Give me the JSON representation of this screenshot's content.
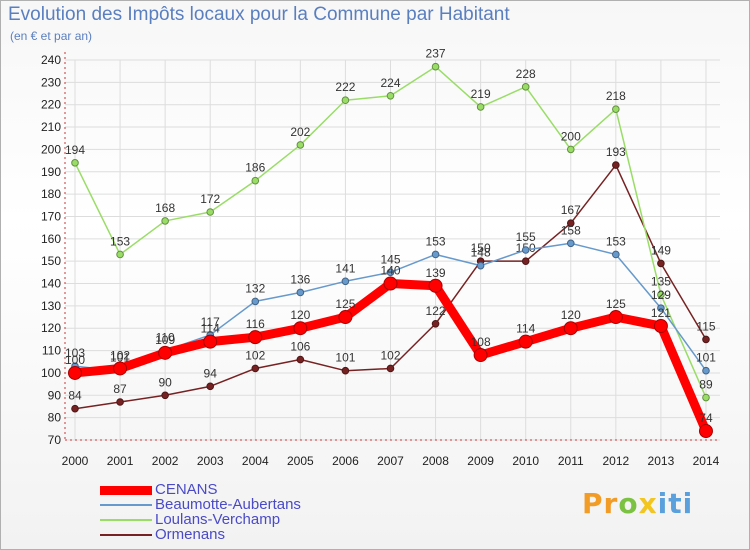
{
  "chart_data": {
    "type": "line",
    "title": "Evolution des Impôts locaux pour la Commune par Habitant",
    "subtitle": "(en € et par an)",
    "x": [
      "2000",
      "2001",
      "2002",
      "2003",
      "2004",
      "2005",
      "2006",
      "2007",
      "2008",
      "2009",
      "2010",
      "2011",
      "2012",
      "2013",
      "2014"
    ],
    "ylim": [
      70,
      240
    ],
    "yticks": [
      70,
      80,
      90,
      100,
      110,
      120,
      130,
      140,
      150,
      160,
      170,
      180,
      190,
      200,
      210,
      220,
      230,
      240
    ],
    "grid": true,
    "legend_position": "bottom-left",
    "series": [
      {
        "name": "CENANS",
        "color": "#ff0000",
        "values": [
          100,
          102,
          109,
          114,
          116,
          120,
          125,
          140,
          139,
          108,
          114,
          120,
          125,
          121,
          74
        ]
      },
      {
        "name": "Beaumotte-Aubertans",
        "color": "#6699cc",
        "values": [
          103,
          101,
          110,
          117,
          132,
          136,
          141,
          145,
          153,
          148,
          155,
          158,
          153,
          129,
          101
        ]
      },
      {
        "name": "Loulans-Verchamp",
        "color": "#99dd66",
        "values": [
          194,
          153,
          168,
          172,
          186,
          202,
          222,
          224,
          237,
          219,
          228,
          200,
          218,
          135,
          89
        ]
      },
      {
        "name": "Ormenans",
        "color": "#772222",
        "values": [
          84,
          87,
          90,
          94,
          102,
          106,
          101,
          102,
          122,
          150,
          150,
          167,
          193,
          149,
          115
        ]
      }
    ]
  },
  "branding": {
    "logo": {
      "p": "Pr",
      "o": "o",
      "x": "x",
      "i": "iti"
    }
  }
}
